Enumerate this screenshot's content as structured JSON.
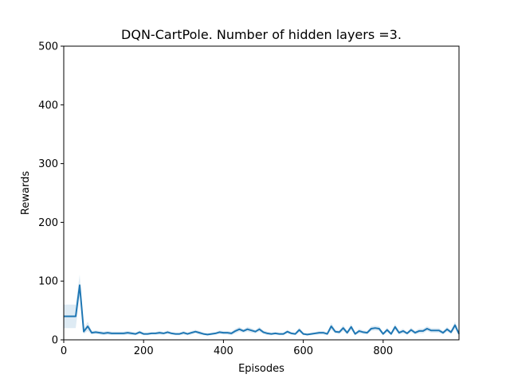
{
  "chart_data": {
    "type": "line",
    "title": "DQN-CartPole. Number of hidden layers =3.",
    "xlabel": "Episodes",
    "ylabel": "Rewards",
    "xlim": [
      0,
      990
    ],
    "ylim": [
      0,
      500
    ],
    "xticks": [
      0,
      200,
      400,
      600,
      800
    ],
    "yticks": [
      0,
      100,
      200,
      300,
      400,
      500
    ],
    "grid": false,
    "legend": "none",
    "colors": {
      "line": "#1f77b4",
      "band": "#1f77b4"
    },
    "series": [
      {
        "x": [
          0,
          10,
          20,
          30,
          40,
          50,
          60,
          70,
          80,
          90,
          100,
          110,
          120,
          130,
          140,
          150,
          160,
          170,
          180,
          190,
          200,
          210,
          220,
          230,
          240,
          250,
          260,
          270,
          280,
          290,
          300,
          310,
          320,
          330,
          340,
          350,
          360,
          370,
          380,
          390,
          400,
          410,
          420,
          430,
          440,
          450,
          460,
          470,
          480,
          490,
          500,
          510,
          520,
          530,
          540,
          550,
          560,
          570,
          580,
          590,
          600,
          610,
          620,
          630,
          640,
          650,
          660,
          670,
          680,
          690,
          700,
          710,
          720,
          730,
          740,
          750,
          760,
          770,
          780,
          790,
          800,
          810,
          820,
          830,
          840,
          850,
          860,
          870,
          880,
          890,
          900,
          910,
          920,
          930,
          940,
          950,
          960,
          970,
          980,
          990
        ],
        "values": [
          40,
          40,
          40,
          40,
          93,
          14,
          23,
          12,
          13,
          12,
          11,
          12,
          11,
          11,
          11,
          11,
          12,
          11,
          10,
          13,
          10,
          10,
          11,
          11,
          12,
          11,
          13,
          11,
          10,
          10,
          12,
          10,
          12,
          14,
          12,
          10,
          9,
          10,
          11,
          13,
          12,
          12,
          11,
          15,
          18,
          15,
          18,
          16,
          14,
          18,
          13,
          11,
          10,
          11,
          10,
          10,
          14,
          11,
          10,
          17,
          10,
          9,
          10,
          11,
          12,
          12,
          10,
          23,
          14,
          13,
          20,
          12,
          22,
          10,
          15,
          13,
          12,
          19,
          20,
          19,
          10,
          17,
          10,
          22,
          12,
          15,
          11,
          17,
          12,
          15,
          15,
          19,
          16,
          16,
          16,
          12,
          18,
          13,
          25,
          10
        ],
        "lower": [
          20,
          20,
          20,
          20,
          75,
          10,
          15,
          9,
          10,
          9,
          8,
          9,
          8,
          8,
          8,
          8,
          9,
          8,
          8,
          10,
          8,
          8,
          9,
          9,
          9,
          9,
          10,
          9,
          8,
          8,
          9,
          8,
          9,
          11,
          9,
          8,
          7,
          8,
          9,
          10,
          9,
          9,
          8,
          11,
          14,
          12,
          14,
          12,
          11,
          14,
          10,
          8,
          8,
          9,
          8,
          8,
          11,
          9,
          8,
          13,
          8,
          7,
          8,
          9,
          9,
          9,
          8,
          17,
          11,
          10,
          15,
          9,
          17,
          8,
          11,
          10,
          9,
          15,
          16,
          15,
          8,
          13,
          8,
          17,
          9,
          11,
          9,
          13,
          9,
          11,
          11,
          15,
          12,
          12,
          12,
          9,
          14,
          10,
          19,
          8
        ],
        "upper": [
          60,
          60,
          60,
          60,
          111,
          18,
          31,
          15,
          16,
          15,
          14,
          15,
          14,
          14,
          14,
          14,
          15,
          14,
          12,
          16,
          12,
          12,
          13,
          13,
          15,
          13,
          16,
          13,
          12,
          12,
          15,
          12,
          15,
          17,
          15,
          12,
          11,
          12,
          13,
          16,
          15,
          15,
          14,
          19,
          22,
          18,
          22,
          20,
          17,
          22,
          16,
          14,
          12,
          13,
          12,
          12,
          17,
          13,
          12,
          21,
          12,
          11,
          12,
          13,
          15,
          15,
          12,
          29,
          17,
          16,
          25,
          15,
          27,
          12,
          19,
          16,
          15,
          23,
          24,
          23,
          12,
          21,
          12,
          27,
          15,
          19,
          13,
          21,
          15,
          19,
          19,
          23,
          20,
          20,
          20,
          15,
          22,
          16,
          31,
          12
        ]
      }
    ]
  }
}
